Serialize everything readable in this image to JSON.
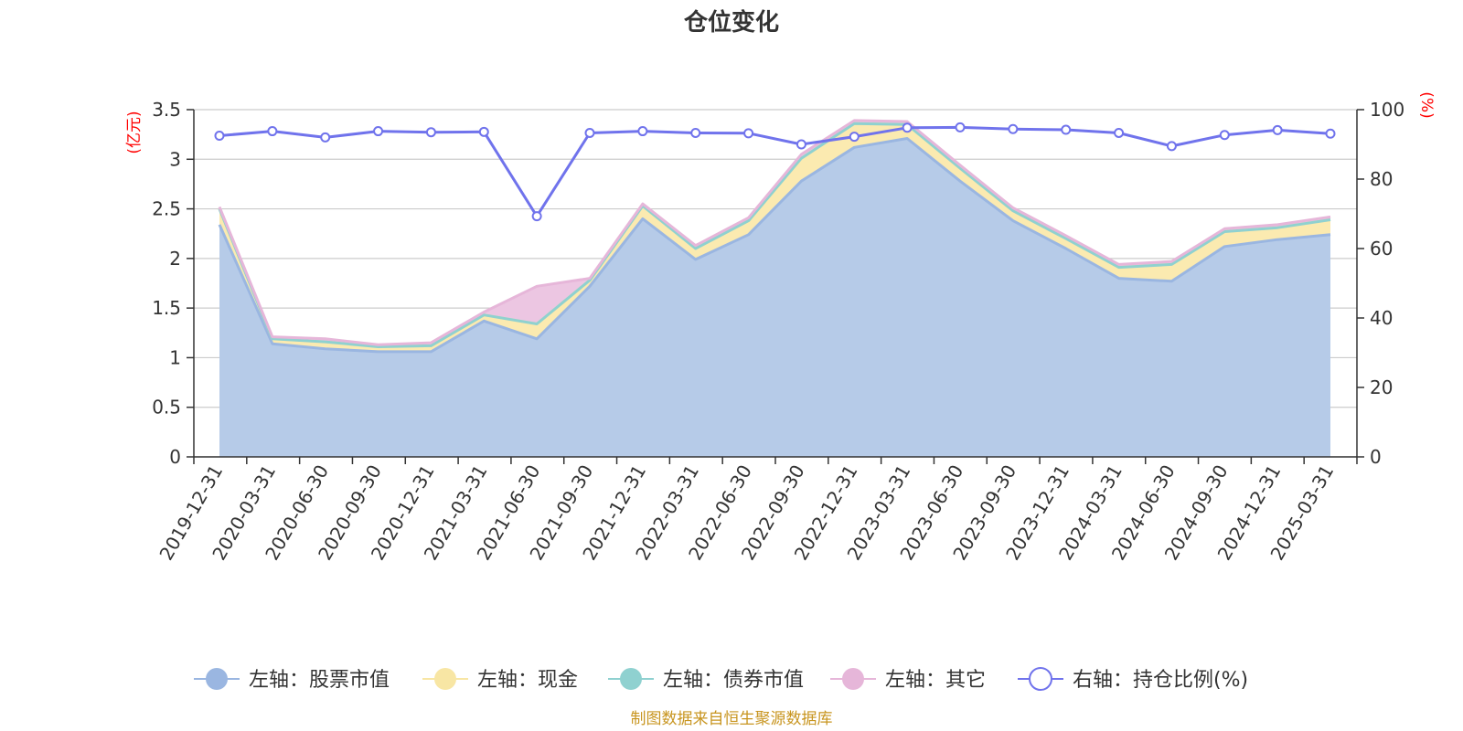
{
  "chart_data": {
    "type": "area",
    "title": "仓位变化",
    "y_left_unit": "(亿元)",
    "y_right_unit": "(%)",
    "y_left_range": [
      0,
      3.5
    ],
    "y_left_ticks": [
      "0",
      "0.5",
      "1",
      "1.5",
      "2",
      "2.5",
      "3",
      "3.5"
    ],
    "y_right_range": [
      0,
      100
    ],
    "y_right_ticks": [
      "0",
      "20",
      "40",
      "60",
      "80",
      "100"
    ],
    "grid": true,
    "legend_position": "bottom",
    "categories": [
      "2019-12-31",
      "2020-03-31",
      "2020-06-30",
      "2020-09-30",
      "2020-12-31",
      "2021-03-31",
      "2021-06-30",
      "2021-09-30",
      "2021-12-31",
      "2022-03-31",
      "2022-06-30",
      "2022-09-30",
      "2022-12-31",
      "2023-03-31",
      "2023-06-30",
      "2023-09-30",
      "2023-12-31",
      "2024-03-31",
      "2024-06-30",
      "2024-09-30",
      "2024-12-31",
      "2025-03-31"
    ],
    "series": [
      {
        "name": "左轴：股票市值",
        "axis": "left",
        "stack": true,
        "color": "#9ab6e1",
        "fill": "#b6cbe8",
        "values": [
          2.34,
          1.14,
          1.09,
          1.06,
          1.06,
          1.37,
          1.19,
          1.72,
          2.4,
          1.99,
          2.24,
          2.78,
          3.12,
          3.21,
          2.78,
          2.38,
          2.1,
          1.8,
          1.77,
          2.12,
          2.19,
          2.24
        ]
      },
      {
        "name": "左轴：现金",
        "axis": "left",
        "stack": true,
        "color": "#f8e6a4",
        "fill": "#fbeab0",
        "values": [
          0.16,
          0.05,
          0.07,
          0.05,
          0.06,
          0.06,
          0.15,
          0.06,
          0.13,
          0.11,
          0.14,
          0.23,
          0.24,
          0.14,
          0.13,
          0.1,
          0.1,
          0.11,
          0.17,
          0.15,
          0.12,
          0.15
        ]
      },
      {
        "name": "左轴：债券市值",
        "axis": "left",
        "stack": true,
        "color": "#8fd1d0",
        "fill": "#a9dcdb",
        "values": [
          0,
          0,
          0,
          0,
          0,
          0,
          0,
          0,
          0,
          0,
          0,
          0,
          0,
          0,
          0,
          0,
          0,
          0,
          0,
          0,
          0,
          0
        ]
      },
      {
        "name": "左轴：其它",
        "axis": "left",
        "stack": true,
        "color": "#e6b6d9",
        "fill": "#ecc6e2",
        "values": [
          0.02,
          0.02,
          0.03,
          0.02,
          0.03,
          0.03,
          0.38,
          0.02,
          0.02,
          0.03,
          0.03,
          0.04,
          0.03,
          0.03,
          0.03,
          0.03,
          0.03,
          0.03,
          0.03,
          0.03,
          0.03,
          0.03
        ]
      },
      {
        "name": "右轴：持仓比例(%)",
        "axis": "right",
        "stack": false,
        "color": "#7073ec",
        "values": [
          92.5,
          93.8,
          92.0,
          93.8,
          93.5,
          93.6,
          69.3,
          93.3,
          93.8,
          93.3,
          93.2,
          90.0,
          92.2,
          94.8,
          94.9,
          94.4,
          94.2,
          93.3,
          89.5,
          92.7,
          94.1,
          93.1
        ]
      }
    ]
  },
  "source_text": "制图数据来自恒生聚源数据库"
}
